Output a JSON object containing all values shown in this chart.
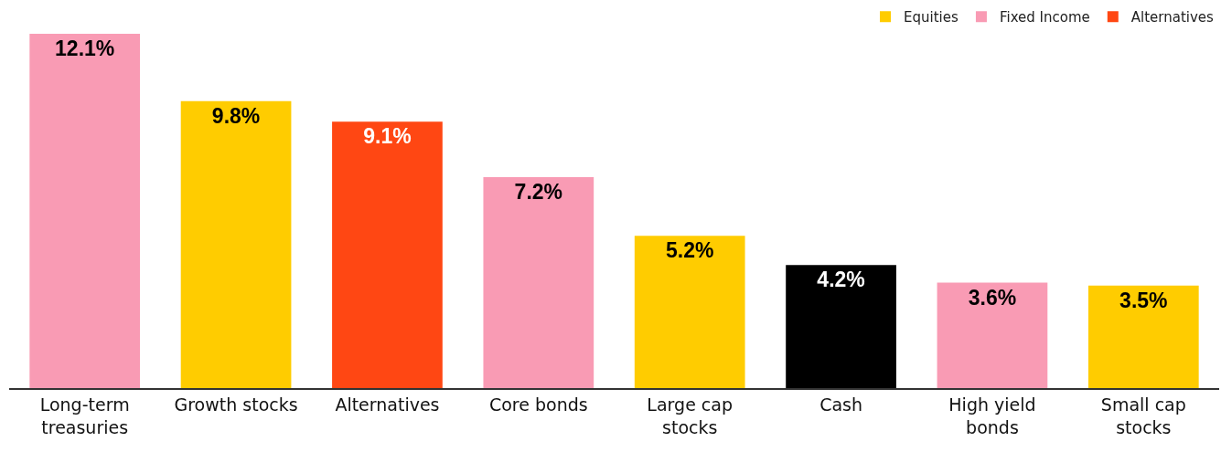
{
  "chart_data": {
    "type": "bar",
    "categories": [
      "Long-term\ntreasuries",
      "Growth stocks",
      "Alternatives",
      "Core bonds",
      "Large cap\nstocks",
      "Cash",
      "High yield\nbonds",
      "Small cap\nstocks"
    ],
    "series": [
      {
        "name": "Equities",
        "color": "#ffcc00",
        "values": [
          null,
          9.8,
          null,
          null,
          5.2,
          null,
          null,
          3.5
        ],
        "value_labels": [
          null,
          "9.8%",
          null,
          null,
          "5.2%",
          null,
          null,
          "3.5%"
        ]
      },
      {
        "name": "Fixed Income",
        "color": "#f99bb4",
        "values": [
          12.1,
          null,
          null,
          7.2,
          null,
          null,
          3.6,
          null
        ],
        "value_labels": [
          "12.1%",
          null,
          null,
          "7.2%",
          null,
          null,
          "3.6%",
          null
        ]
      },
      {
        "name": "Alternatives",
        "color": "#ff4713",
        "values": [
          null,
          null,
          9.1,
          null,
          null,
          null,
          null,
          null
        ],
        "value_labels": [
          null,
          null,
          "9.1%",
          null,
          null,
          null,
          null,
          null
        ]
      },
      {
        "color": "#000000",
        "values": [
          null,
          null,
          null,
          null,
          null,
          4.2,
          null,
          null
        ],
        "value_labels": [
          null,
          null,
          null,
          null,
          null,
          "4.2%",
          null,
          null
        ]
      }
    ],
    "legend": "top right"
  }
}
